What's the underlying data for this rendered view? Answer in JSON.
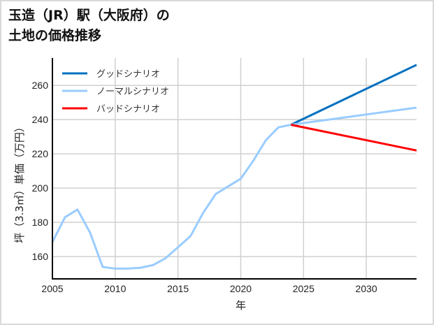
{
  "title_line1": "玉造（JR）駅（大阪府）の",
  "title_line2": "土地の価格推移",
  "chart_data": {
    "type": "line",
    "title": "玉造（JR）駅（大阪府）の土地の価格推移",
    "xlabel": "年",
    "ylabel": "坪（3.3㎡）単価（万円）",
    "xlim": [
      2005,
      2034
    ],
    "ylim": [
      147,
      276
    ],
    "xticks": [
      2005,
      2010,
      2015,
      2020,
      2025,
      2030
    ],
    "yticks": [
      160,
      180,
      200,
      220,
      240,
      260
    ],
    "grid": true,
    "legend_position": "upper left",
    "series": [
      {
        "name": "グッドシナリオ",
        "color": "#0070c0",
        "x": [
          2024,
          2034
        ],
        "values": [
          237,
          272
        ]
      },
      {
        "name": "ノーマルシナリオ",
        "color": "#99ccff",
        "x": [
          2005,
          2006,
          2007,
          2008,
          2009,
          2010,
          2011,
          2012,
          2013,
          2014,
          2015,
          2016,
          2017,
          2018,
          2019,
          2020,
          2021,
          2022,
          2023,
          2024,
          2034
        ],
        "values": [
          168.5,
          183,
          187.5,
          174,
          154,
          153,
          153,
          153.5,
          155,
          159,
          165.5,
          172,
          185.5,
          196.5,
          201,
          205.5,
          216,
          228,
          235.5,
          237,
          247
        ]
      },
      {
        "name": "バッドシナリオ",
        "color": "#ff0000",
        "x": [
          2024,
          2034
        ],
        "values": [
          237,
          222
        ]
      }
    ]
  }
}
